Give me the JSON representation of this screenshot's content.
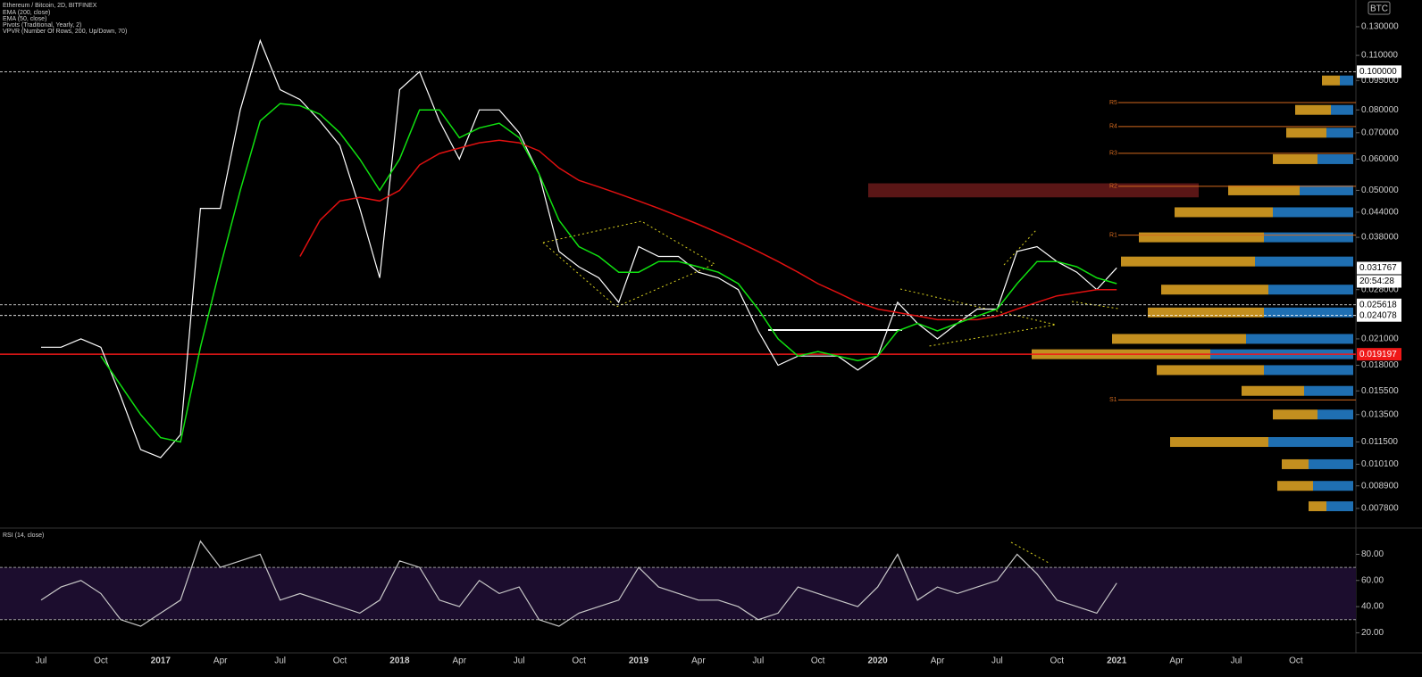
{
  "header": {
    "symbol": "Ethereum / Bitcoin, 2D, BITFINEX",
    "pivots_name": "Pivots (Traditional, Yearly, 2)",
    "vpvr_name": "VPVR (Number Of Rows, 200, Up/Down, 70)",
    "currency": "BTC",
    "countdown": "20:54:28"
  },
  "chart_data": [
    {
      "type": "line",
      "log_scale": true,
      "grid": false,
      "categories": [
        "Jul",
        null,
        null,
        "Oct",
        null,
        null,
        "2017",
        null,
        null,
        "Apr",
        null,
        null,
        "Jul",
        null,
        null,
        "Oct",
        null,
        null,
        "2018",
        null,
        null,
        "Apr",
        null,
        null,
        "Jul",
        null,
        null,
        "Oct",
        null,
        null,
        "2019",
        null,
        null,
        "Apr",
        null,
        null,
        "Jul",
        null,
        null,
        "Oct",
        null,
        null,
        "2020",
        null,
        null,
        "Apr",
        null,
        null,
        "Jul",
        null,
        null,
        "Oct",
        null,
        null,
        "2021",
        null,
        null,
        "Apr",
        null,
        null,
        "Jul",
        null,
        null,
        "Oct",
        null,
        null
      ],
      "series": [
        {
          "name": "Ethereum / Bitcoin",
          "color": "#ffffff",
          "values": [
            0.02,
            0.02,
            0.021,
            0.02,
            0.015,
            0.011,
            0.0105,
            0.012,
            0.045,
            0.045,
            0.08,
            0.12,
            0.09,
            0.085,
            0.075,
            0.065,
            0.045,
            0.03,
            0.09,
            0.1,
            0.075,
            0.06,
            0.08,
            0.08,
            0.07,
            0.055,
            0.035,
            0.032,
            0.03,
            0.026,
            0.036,
            0.034,
            0.034,
            0.031,
            0.03,
            0.028,
            0.022,
            0.018,
            0.019,
            0.019,
            0.019,
            0.0175,
            0.019,
            0.026,
            0.023,
            0.021,
            0.023,
            0.025,
            0.025,
            0.035,
            0.036,
            0.033,
            0.031,
            0.028,
            0.0318,
            null,
            null,
            null,
            null,
            null,
            null,
            null,
            null,
            null,
            null,
            null
          ]
        },
        {
          "name": "EMA (200, close)",
          "color": "#e01010",
          "values": [
            null,
            null,
            null,
            null,
            null,
            null,
            null,
            null,
            null,
            null,
            null,
            null,
            null,
            0.034,
            0.042,
            0.047,
            0.048,
            0.047,
            0.05,
            0.058,
            0.062,
            0.064,
            0.066,
            0.067,
            0.066,
            0.063,
            0.057,
            0.053,
            0.051,
            0.049,
            0.047,
            0.045,
            0.043,
            0.041,
            0.039,
            0.037,
            0.035,
            0.033,
            0.031,
            0.029,
            0.0275,
            0.026,
            0.025,
            0.0245,
            0.024,
            0.0235,
            0.0235,
            0.0235,
            0.024,
            0.025,
            0.026,
            0.027,
            0.0275,
            0.028,
            0.028,
            null,
            null,
            null,
            null,
            null,
            null,
            null,
            null,
            null,
            null,
            null
          ]
        },
        {
          "name": "EMA (50, close)",
          "color": "#10e010",
          "values": [
            null,
            null,
            null,
            0.019,
            0.016,
            0.0135,
            0.0118,
            0.0115,
            0.02,
            0.032,
            0.05,
            0.075,
            0.083,
            0.082,
            0.078,
            0.07,
            0.06,
            0.05,
            0.06,
            0.08,
            0.08,
            0.068,
            0.072,
            0.074,
            0.068,
            0.055,
            0.042,
            0.036,
            0.034,
            0.031,
            0.031,
            0.033,
            0.033,
            0.032,
            0.031,
            0.029,
            0.025,
            0.021,
            0.019,
            0.0195,
            0.019,
            0.0185,
            0.019,
            0.022,
            0.023,
            0.022,
            0.023,
            0.024,
            0.025,
            0.029,
            0.033,
            0.033,
            0.032,
            0.03,
            0.029,
            null,
            null,
            null,
            null,
            null,
            null,
            null,
            null,
            null,
            null,
            null
          ]
        }
      ],
      "ylim": [
        0.00703,
        0.152
      ],
      "yticks": [
        {
          "value": 0.13,
          "label": "0.130000"
        },
        {
          "value": 0.11,
          "label": "0.110000"
        },
        {
          "value": 0.095,
          "label": "0.095000"
        },
        {
          "value": 0.08,
          "label": "0.080000"
        },
        {
          "value": 0.07,
          "label": "0.070000"
        },
        {
          "value": 0.06,
          "label": "0.060000"
        },
        {
          "value": 0.05,
          "label": "0.050000"
        },
        {
          "value": 0.044,
          "label": "0.044000"
        },
        {
          "value": 0.038,
          "label": "0.038000"
        },
        {
          "value": 0.028,
          "label": "0.028000"
        },
        {
          "value": 0.021,
          "label": "0.021000"
        },
        {
          "value": 0.018,
          "label": "0.018000"
        },
        {
          "value": 0.0155,
          "label": "0.015500"
        },
        {
          "value": 0.0135,
          "label": "0.013500"
        },
        {
          "value": 0.0115,
          "label": "0.011500"
        },
        {
          "value": 0.0101,
          "label": "0.010100"
        },
        {
          "value": 0.0089,
          "label": "0.008900"
        },
        {
          "value": 0.0078,
          "label": "0.007800"
        }
      ],
      "price_lines": [
        {
          "value": 0.1,
          "label": "0.100000",
          "color": "#ffffff",
          "line": "dashed"
        },
        {
          "value": 0.031767,
          "label": "0.031767",
          "color": "#ffffff",
          "line": "none"
        },
        {
          "value": 0.025618,
          "label": "0.025618",
          "color": "#ffffff",
          "line": "dashed"
        },
        {
          "value": 0.024078,
          "label": "0.024078",
          "color": "#ffffff",
          "line": "dashed"
        },
        {
          "value": 0.019197,
          "label": "0.019197",
          "color": "#f01818",
          "line": "solid"
        }
      ],
      "pivots": {
        "color": "#d2691e",
        "levels": [
          {
            "label": "R5",
            "value": 0.0835
          },
          {
            "label": "R4",
            "value": 0.0726
          },
          {
            "label": "R3",
            "value": 0.0621
          },
          {
            "label": "R2",
            "value": 0.0512
          },
          {
            "label": "R1",
            "value": 0.0385
          },
          {
            "label": "S1",
            "value": 0.0147
          }
        ]
      },
      "zone": {
        "range": [
          0.048,
          0.0521
        ],
        "color": "#5a1616"
      },
      "volume_profile": {
        "up_color": "#c38f1f",
        "down_color": "#1f6fb2",
        "levels": [
          0.095,
          0.08,
          0.07,
          0.06,
          0.05,
          0.044,
          0.038,
          0.033,
          0.028,
          0.0245,
          0.021,
          0.0192,
          0.0175,
          0.0155,
          0.0135,
          0.0115,
          0.0101,
          0.0089,
          0.0079
        ],
        "up": [
          20,
          40,
          45,
          50,
          80,
          110,
          140,
          150,
          120,
          130,
          150,
          200,
          120,
          70,
          50,
          110,
          30,
          40,
          20
        ],
        "down": [
          15,
          25,
          30,
          40,
          60,
          90,
          100,
          110,
          95,
          100,
          120,
          160,
          100,
          55,
          40,
          95,
          50,
          45,
          30
        ]
      }
    },
    {
      "type": "line",
      "title": "RSI (14, close)",
      "series": [
        {
          "name": "RSI",
          "color": "#c8c8c8",
          "values": [
            45,
            55,
            60,
            50,
            30,
            25,
            35,
            45,
            90,
            70,
            75,
            80,
            45,
            50,
            45,
            40,
            35,
            45,
            75,
            70,
            45,
            40,
            60,
            50,
            55,
            30,
            25,
            35,
            40,
            45,
            70,
            55,
            50,
            45,
            45,
            40,
            30,
            35,
            55,
            50,
            45,
            40,
            55,
            80,
            45,
            55,
            50,
            55,
            60,
            80,
            65,
            45,
            40,
            35,
            58,
            null,
            null,
            null,
            null,
            null,
            null,
            null,
            null,
            null,
            null,
            null
          ]
        }
      ],
      "band": [
        30,
        70
      ],
      "band_color": "#1c0d2e",
      "ylim": [
        6,
        98
      ],
      "yticks": [
        {
          "value": 80,
          "label": "80.00"
        },
        {
          "value": 60,
          "label": "60.00"
        },
        {
          "value": 40,
          "label": "40.00"
        },
        {
          "value": 20,
          "label": "20.00"
        }
      ]
    }
  ]
}
